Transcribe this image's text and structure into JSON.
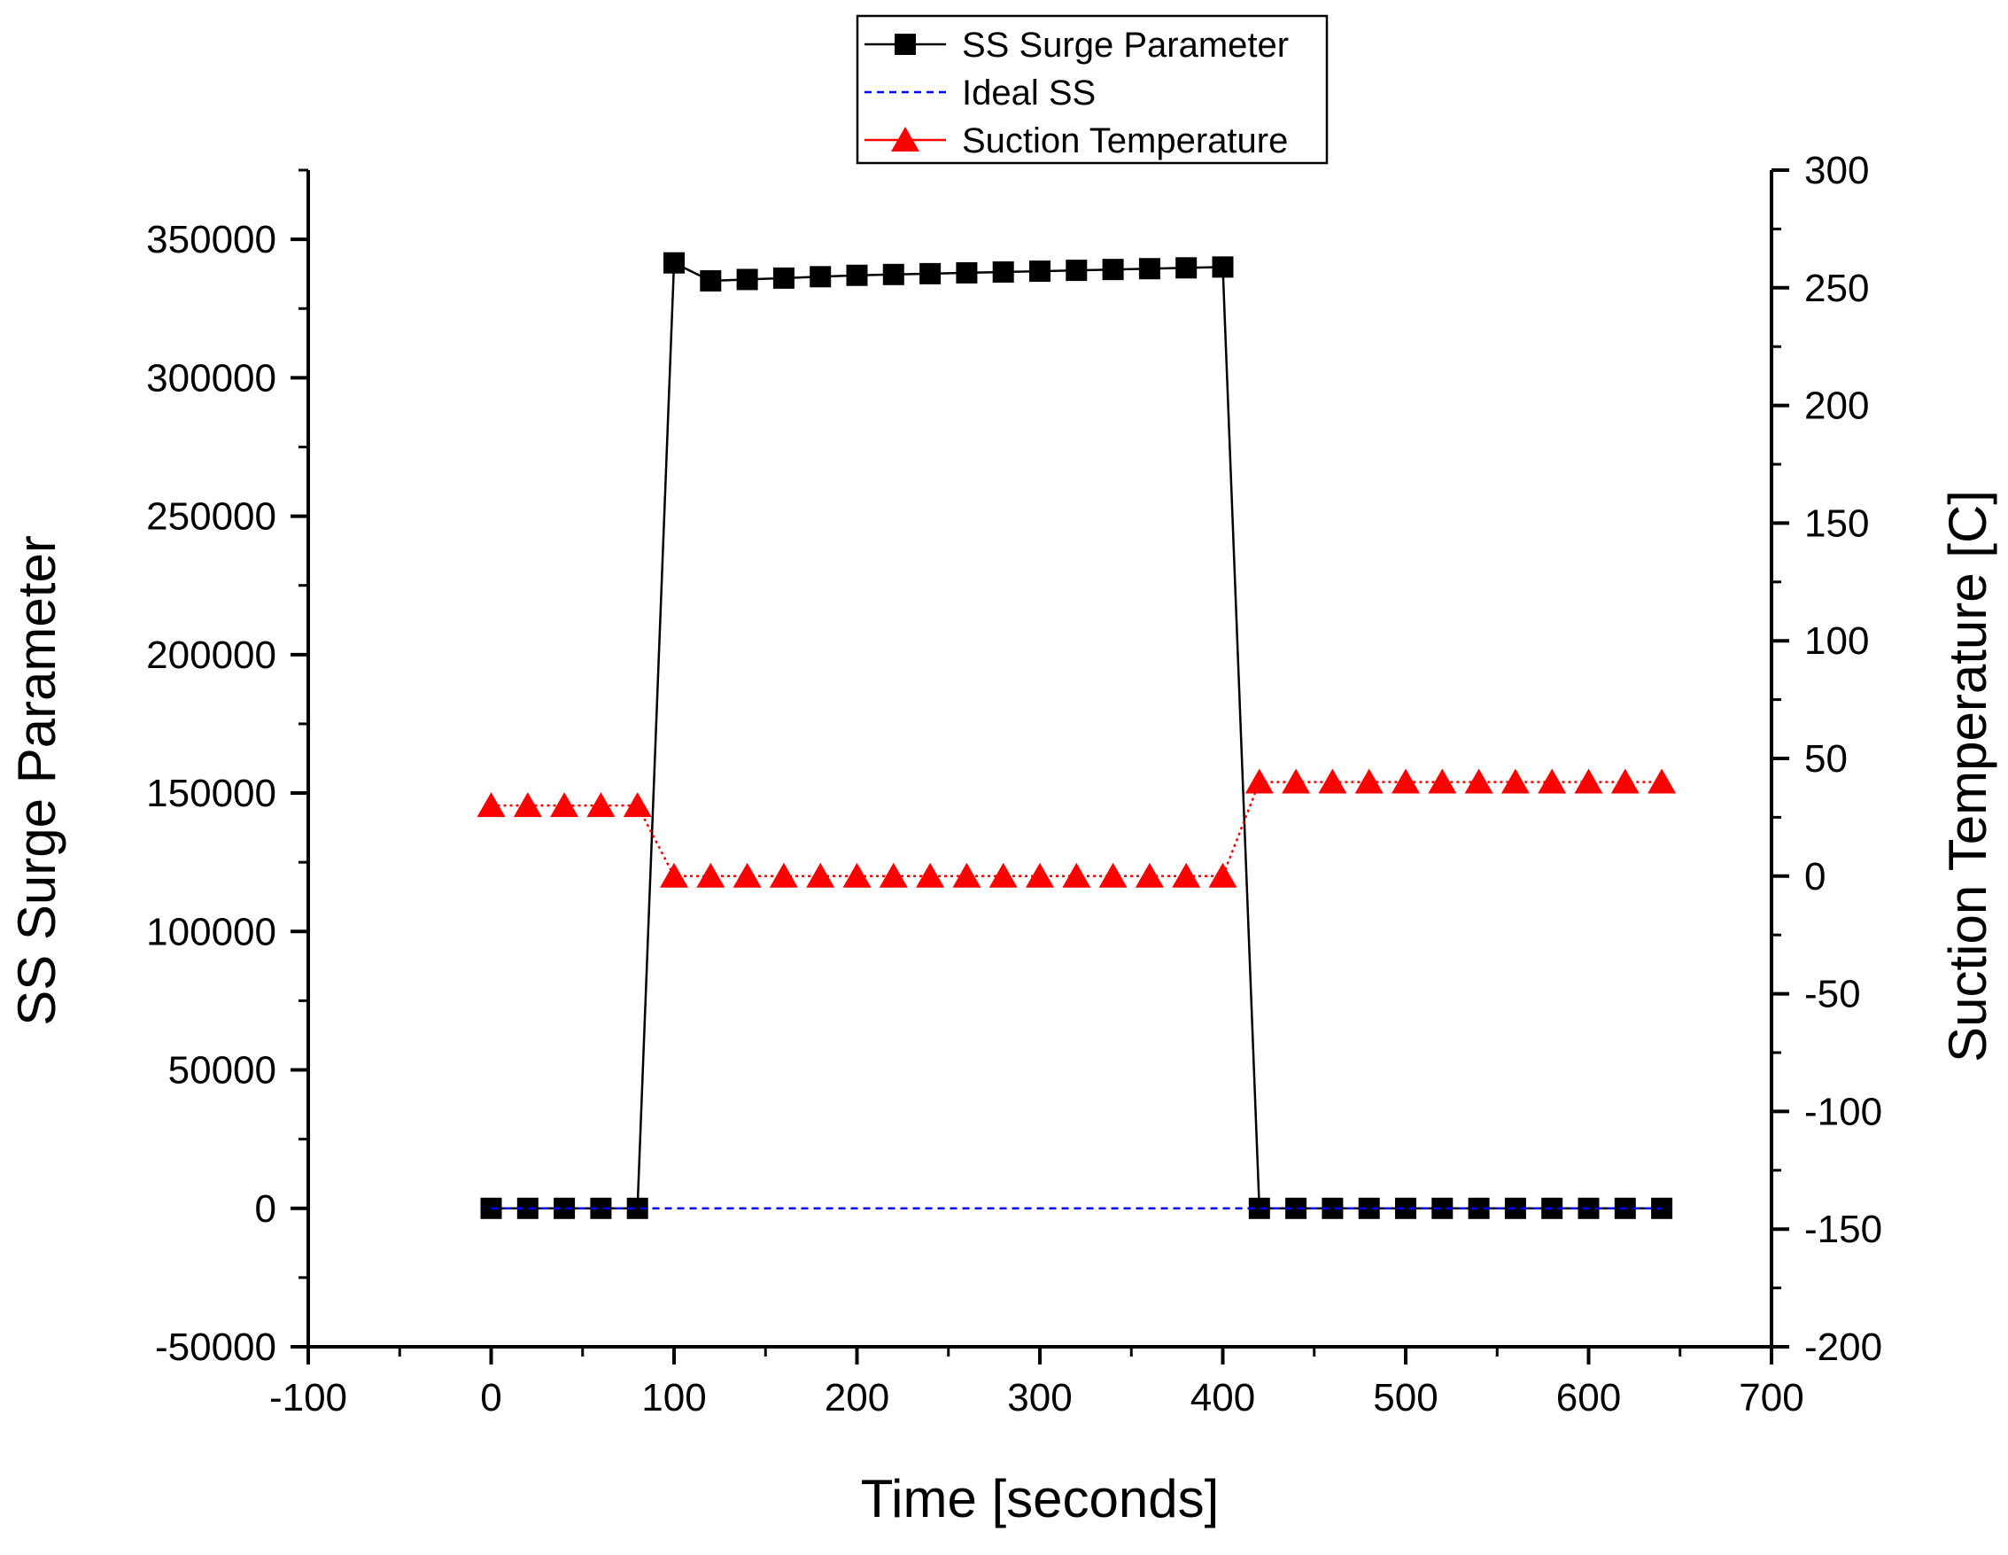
{
  "chart_data": {
    "type": "line",
    "title": "",
    "xlabel": "Time [seconds]",
    "ylabel": "SS Surge Parameter",
    "y2label": "Suction Temperature [C]",
    "xlim": [
      -100,
      700
    ],
    "ylim": [
      -50000,
      375000
    ],
    "y2lim": [
      -200,
      300
    ],
    "xticks": [
      -100,
      0,
      100,
      200,
      300,
      400,
      500,
      600,
      700
    ],
    "yticks": [
      -50000,
      0,
      50000,
      100000,
      150000,
      200000,
      250000,
      300000,
      350000
    ],
    "y2ticks": [
      -200,
      -150,
      -100,
      -50,
      0,
      50,
      100,
      150,
      200,
      250,
      300
    ],
    "grid": false,
    "legend_position": "top-center",
    "series": [
      {
        "name": "SS Surge Parameter",
        "axis": "left",
        "color": "#000000",
        "marker": "square",
        "line": "solid",
        "x": [
          0,
          20,
          40,
          60,
          80,
          100,
          120,
          140,
          160,
          180,
          200,
          220,
          240,
          260,
          280,
          300,
          320,
          340,
          360,
          380,
          400,
          420,
          440,
          460,
          480,
          500,
          520,
          540,
          560,
          580,
          600,
          620,
          640
        ],
        "y": [
          0,
          0,
          0,
          0,
          0,
          341500,
          335000,
          335500,
          336000,
          336500,
          337000,
          337300,
          337600,
          337900,
          338200,
          338500,
          338800,
          339100,
          339400,
          339700,
          340000,
          0,
          0,
          0,
          0,
          0,
          0,
          0,
          0,
          0,
          0,
          0,
          0
        ]
      },
      {
        "name": "Ideal SS",
        "axis": "left",
        "color": "#0000ff",
        "marker": "none",
        "line": "dashed",
        "x": [
          0,
          640
        ],
        "y": [
          0,
          0
        ]
      },
      {
        "name": "Suction Temperature",
        "axis": "right",
        "color": "#ff0000",
        "marker": "triangle",
        "line": "dotted",
        "x": [
          0,
          20,
          40,
          60,
          80,
          100,
          120,
          140,
          160,
          180,
          200,
          220,
          240,
          260,
          280,
          300,
          320,
          340,
          360,
          380,
          400,
          420,
          440,
          460,
          480,
          500,
          520,
          540,
          560,
          580,
          600,
          620,
          640
        ],
        "y": [
          30,
          30,
          30,
          30,
          30,
          0,
          0,
          0,
          0,
          0,
          0,
          0,
          0,
          0,
          0,
          0,
          0,
          0,
          0,
          0,
          0,
          40,
          40,
          40,
          40,
          40,
          40,
          40,
          40,
          40,
          40,
          40,
          40
        ]
      }
    ]
  }
}
